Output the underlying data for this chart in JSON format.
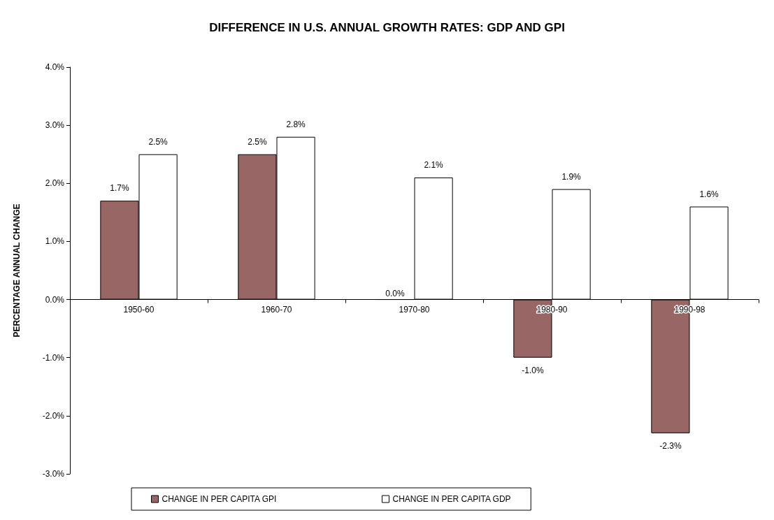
{
  "chart_data": {
    "type": "bar",
    "title": "DIFFERENCE IN U.S. ANNUAL GROWTH RATES: GDP AND GPI",
    "ylabel": "PERCENTAGE ANNUAL CHANGE",
    "categories": [
      "1950-60",
      "1960-70",
      "1970-80",
      "1980-90",
      "1990-98"
    ],
    "series": [
      {
        "name": "CHANGE IN PER CAPITA GPI",
        "color": "#996666",
        "values": [
          1.7,
          2.5,
          0.0,
          -1.0,
          -2.3
        ],
        "value_labels": [
          "1.7%",
          "2.5%",
          "0.0%",
          "-1.0%",
          "-2.3%"
        ]
      },
      {
        "name": "CHANGE IN PER CAPITA GDP",
        "color": "#ffffff",
        "values": [
          2.5,
          2.8,
          2.1,
          1.9,
          1.6
        ],
        "value_labels": [
          "2.5%",
          "2.8%",
          "2.1%",
          "1.9%",
          "1.6%"
        ]
      }
    ],
    "ylim": [
      -3,
      4
    ],
    "yticks": [
      {
        "value": -3,
        "label": "-3.0%"
      },
      {
        "value": -2,
        "label": "-2.0%"
      },
      {
        "value": -1,
        "label": "-1.0%"
      },
      {
        "value": 0,
        "label": "0.0%"
      },
      {
        "value": 1,
        "label": "1.0%"
      },
      {
        "value": 2,
        "label": "2.0%"
      },
      {
        "value": 3,
        "label": "3.0%"
      },
      {
        "value": 4,
        "label": "4.0%"
      }
    ],
    "grid": false,
    "legend": "bottom"
  }
}
